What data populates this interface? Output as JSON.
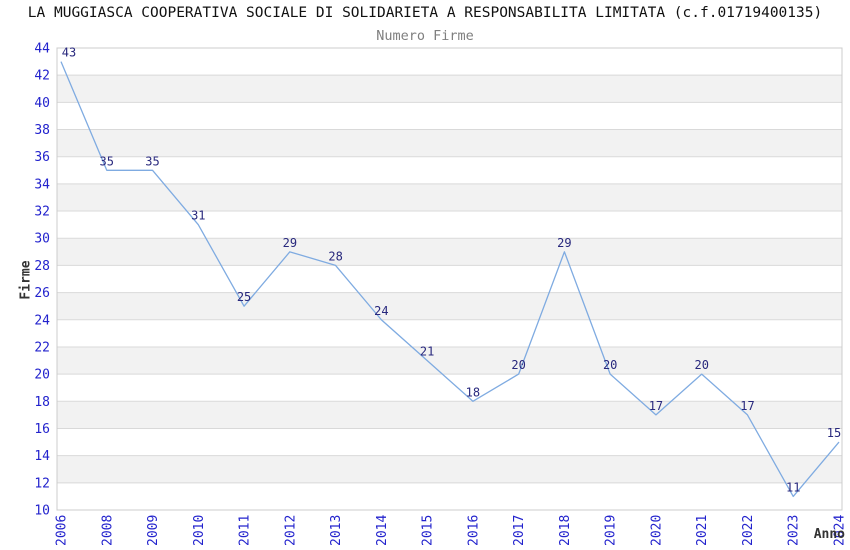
{
  "header": {
    "title": "LA MUGGIASCA COOPERATIVA SOCIALE DI SOLIDARIETA A RESPONSABILITA LIMITATA (c.f.01719400135)",
    "subtitle": "Numero Firme"
  },
  "chart_data": {
    "type": "line",
    "title": "LA MUGGIASCA COOPERATIVA SOCIALE DI SOLIDARIETA A RESPONSABILITA LIMITATA (c.f.01719400135)",
    "subtitle": "Numero Firme",
    "categories": [
      "2006",
      "2008",
      "2009",
      "2010",
      "2011",
      "2012",
      "2013",
      "2014",
      "2015",
      "2016",
      "2017",
      "2018",
      "2019",
      "2020",
      "2021",
      "2022",
      "2023",
      "2024"
    ],
    "values": [
      43,
      35,
      35,
      31,
      25,
      29,
      28,
      24,
      21,
      18,
      20,
      29,
      20,
      17,
      20,
      17,
      11,
      15
    ],
    "xlabel": "Anno",
    "ylabel": "Firme",
    "ylim": [
      10,
      44
    ],
    "ytick_step": 2,
    "grid": "horizontal-bands",
    "legend": "none",
    "point_labels_visible": true,
    "colors": {
      "line": "#7fabe1",
      "tick_label": "#2323cd",
      "point_label": "#28287d",
      "band": "#f2f2f2",
      "band_alt": "#ffffff",
      "gridline": "#d9d9d9",
      "border": "#cccccc",
      "title": "#111111",
      "subtitle": "#7f7f7f",
      "axis_label": "#333333"
    }
  }
}
